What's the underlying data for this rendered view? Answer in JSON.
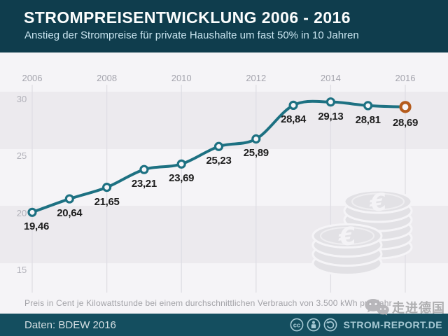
{
  "header": {
    "title": "STROMPREISENTWICKLUNG 2006 - 2016",
    "subtitle": "Anstieg der Strompreise für private Haushalte um fast 50% in 10 Jahren"
  },
  "chart_data": {
    "type": "line",
    "title": "Strompreisentwicklung 2006 - 2016",
    "x": [
      2006,
      2007,
      2008,
      2009,
      2010,
      2011,
      2012,
      2013,
      2014,
      2015,
      2016
    ],
    "values": [
      19.46,
      20.64,
      21.65,
      23.21,
      23.69,
      25.23,
      25.89,
      28.84,
      29.13,
      28.81,
      28.69
    ],
    "point_labels": [
      "19,46",
      "20,64",
      "21,65",
      "23,21",
      "23,69",
      "25,23",
      "25,89",
      "28,84",
      "29,13",
      "28,81",
      "28,69"
    ],
    "x_tick_labels": [
      "2006",
      "2008",
      "2010",
      "2012",
      "2014",
      "2016"
    ],
    "y_tick_values": [
      30,
      25,
      20,
      15
    ],
    "ylim": [
      13.0,
      31.5
    ],
    "ylabel": "Preis in Cent je Kilowattstunde",
    "legend": "none",
    "grid": "alternating horizontal bands + vertical year gridlines",
    "line_color": "#1d7182",
    "marker_fill": "#f7f6f9",
    "last_marker_color": "#b55c1d"
  },
  "footer": {
    "note": "Preis in Cent je Kilowattstunde bei einem durchschnittlichen Verbrauch von 3.500 kWh pro Jahr"
  },
  "bottom_bar": {
    "source_label": "Daten: BDEW 2016",
    "brand": "STROM-REPORT.DE",
    "license": "CC BY-SA"
  },
  "watermark": {
    "text": "走进德国"
  },
  "icons": {
    "cc": "cc-license-icon",
    "by": "attribution-icon",
    "sa": "share-alike-icon",
    "coins": "euro-coins-icon",
    "chat": "chat-bubbles-icon"
  }
}
